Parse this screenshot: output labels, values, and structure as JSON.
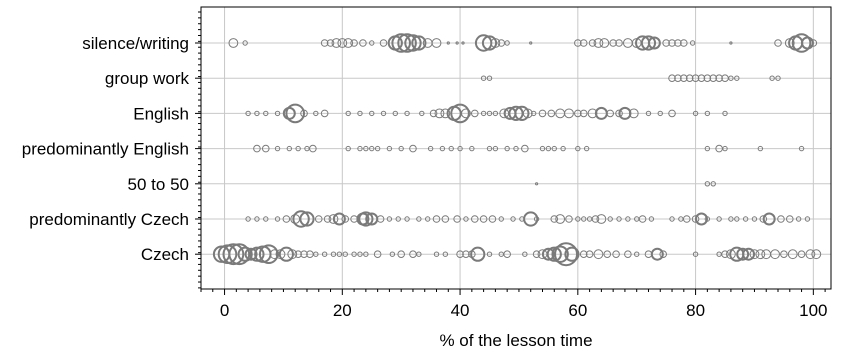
{
  "chart_data": {
    "type": "scatter",
    "xlabel": "% of the lesson time",
    "ylabel": "",
    "title": "",
    "xlim": [
      -4,
      103
    ],
    "xticks": [
      0,
      20,
      40,
      60,
      80,
      100
    ],
    "grid": true,
    "legend": "none",
    "marker_color": "#7a7a7a",
    "categories": [
      "silence/writing",
      "group work",
      "English",
      "predominantly English",
      "50 to 50",
      "predominantly Czech",
      "Czech"
    ],
    "series": [
      {
        "category": "silence/writing",
        "points": [
          [
            1.5,
            2
          ],
          [
            3.5,
            1
          ],
          [
            17,
            1.5
          ],
          [
            18,
            1.5
          ],
          [
            19,
            2
          ],
          [
            20,
            2
          ],
          [
            21,
            2
          ],
          [
            22,
            1.5
          ],
          [
            23.5,
            1.5
          ],
          [
            25,
            1
          ],
          [
            27,
            1.5
          ],
          [
            29,
            3
          ],
          [
            30,
            4
          ],
          [
            31,
            4
          ],
          [
            32,
            3.5
          ],
          [
            33,
            3
          ],
          [
            34.5,
            2
          ],
          [
            36,
            2
          ],
          [
            38,
            0.5
          ],
          [
            39.5,
            0.5
          ],
          [
            40.5,
            0.5
          ],
          [
            44,
            3.5
          ],
          [
            45,
            3
          ],
          [
            46,
            2
          ],
          [
            47,
            1.5
          ],
          [
            48,
            1
          ],
          [
            52,
            0.5
          ],
          [
            60,
            1.5
          ],
          [
            61,
            1.5
          ],
          [
            62.5,
            1.5
          ],
          [
            63.5,
            2
          ],
          [
            64.5,
            2
          ],
          [
            66,
            1.5
          ],
          [
            67,
            1.5
          ],
          [
            68.5,
            2
          ],
          [
            70,
            2
          ],
          [
            71,
            3
          ],
          [
            72,
            3
          ],
          [
            73,
            2.5
          ],
          [
            75,
            1.5
          ],
          [
            76,
            1.5
          ],
          [
            77,
            1.5
          ],
          [
            78,
            1.5
          ],
          [
            79.5,
            1
          ],
          [
            86,
            0.5
          ],
          [
            94,
            1.5
          ],
          [
            96,
            2
          ],
          [
            97,
            3
          ],
          [
            98,
            4
          ],
          [
            99,
            2.5
          ],
          [
            100,
            1.5
          ]
        ]
      },
      {
        "category": "group work",
        "points": [
          [
            44,
            1
          ],
          [
            45,
            1
          ],
          [
            76,
            1.5
          ],
          [
            77,
            1.5
          ],
          [
            78,
            1.5
          ],
          [
            79,
            1.5
          ],
          [
            80,
            1.5
          ],
          [
            81,
            1.5
          ],
          [
            82,
            1.5
          ],
          [
            83,
            1.5
          ],
          [
            84,
            1.5
          ],
          [
            85,
            1.5
          ],
          [
            86,
            1
          ],
          [
            87,
            1
          ],
          [
            93,
            1
          ],
          [
            94,
            1
          ]
        ]
      },
      {
        "category": "English",
        "points": [
          [
            4,
            1
          ],
          [
            5.5,
            1
          ],
          [
            7,
            1
          ],
          [
            9,
            1
          ],
          [
            11,
            2.5
          ],
          [
            12,
            4
          ],
          [
            13.5,
            1.5
          ],
          [
            15.5,
            1
          ],
          [
            17,
            1.5
          ],
          [
            21,
            1
          ],
          [
            23,
            1
          ],
          [
            25,
            1
          ],
          [
            27,
            1
          ],
          [
            29,
            1
          ],
          [
            31,
            1
          ],
          [
            33.5,
            1
          ],
          [
            35.5,
            1.5
          ],
          [
            36.5,
            2
          ],
          [
            37.5,
            2
          ],
          [
            39,
            3
          ],
          [
            40,
            4
          ],
          [
            41,
            2
          ],
          [
            42.5,
            1.5
          ],
          [
            44,
            1
          ],
          [
            45,
            1
          ],
          [
            46,
            1
          ],
          [
            47.5,
            2
          ],
          [
            48.5,
            2.5
          ],
          [
            49.5,
            3
          ],
          [
            50.5,
            3
          ],
          [
            51.5,
            2
          ],
          [
            52.5,
            1
          ],
          [
            54,
            1.5
          ],
          [
            55.5,
            1.5
          ],
          [
            57,
            2
          ],
          [
            58.5,
            2
          ],
          [
            60,
            1.5
          ],
          [
            61,
            1.5
          ],
          [
            62.5,
            2
          ],
          [
            64,
            2.5
          ],
          [
            65.5,
            1.5
          ],
          [
            67,
            1.5
          ],
          [
            68,
            2.5
          ],
          [
            69.5,
            2
          ],
          [
            72,
            1
          ],
          [
            74,
            1
          ],
          [
            76,
            1.5
          ],
          [
            80,
            1
          ],
          [
            82,
            1
          ],
          [
            85,
            1
          ]
        ]
      },
      {
        "category": "predominantly English",
        "points": [
          [
            5.5,
            1.5
          ],
          [
            7,
            1.5
          ],
          [
            9,
            1
          ],
          [
            11,
            1
          ],
          [
            12.5,
            1
          ],
          [
            14,
            1
          ],
          [
            15,
            1.5
          ],
          [
            21,
            1
          ],
          [
            23,
            1
          ],
          [
            24,
            1
          ],
          [
            25,
            1
          ],
          [
            26,
            1
          ],
          [
            28,
            1
          ],
          [
            30,
            1
          ],
          [
            32,
            1.5
          ],
          [
            35,
            1
          ],
          [
            37,
            1
          ],
          [
            38.5,
            1
          ],
          [
            40,
            1
          ],
          [
            42,
            1
          ],
          [
            45,
            1
          ],
          [
            46,
            1
          ],
          [
            48,
            1
          ],
          [
            49.5,
            1
          ],
          [
            51,
            1.5
          ],
          [
            54,
            1
          ],
          [
            55,
            1
          ],
          [
            56,
            1
          ],
          [
            57.5,
            1
          ],
          [
            60,
            1
          ],
          [
            61.5,
            1
          ],
          [
            82,
            1
          ],
          [
            84,
            1.5
          ],
          [
            85,
            1
          ],
          [
            91,
            1
          ],
          [
            98,
            1
          ]
        ]
      },
      {
        "category": "50 to 50",
        "points": [
          [
            53,
            0.5
          ],
          [
            82,
            1
          ],
          [
            83,
            1
          ]
        ]
      },
      {
        "category": "predominantly Czech",
        "points": [
          [
            4,
            1
          ],
          [
            5.5,
            1
          ],
          [
            7,
            1
          ],
          [
            9,
            1
          ],
          [
            10.5,
            1.5
          ],
          [
            12,
            2
          ],
          [
            13,
            3.5
          ],
          [
            14,
            3
          ],
          [
            16,
            1.5
          ],
          [
            17.5,
            1.5
          ],
          [
            18.5,
            2
          ],
          [
            19.5,
            2.5
          ],
          [
            20.5,
            1.5
          ],
          [
            22,
            1.5
          ],
          [
            23.5,
            2.5
          ],
          [
            24,
            3
          ],
          [
            25,
            2.5
          ],
          [
            26.5,
            1.5
          ],
          [
            28,
            1
          ],
          [
            29.5,
            1
          ],
          [
            31,
            1
          ],
          [
            33,
            1
          ],
          [
            34.5,
            1
          ],
          [
            36,
            1.5
          ],
          [
            37.5,
            1.5
          ],
          [
            39.5,
            1.5
          ],
          [
            41,
            1
          ],
          [
            42.5,
            1.5
          ],
          [
            44,
            1.5
          ],
          [
            45.5,
            1.5
          ],
          [
            47,
            1
          ],
          [
            49,
            1
          ],
          [
            50.5,
            1
          ],
          [
            52,
            3
          ],
          [
            53,
            1
          ],
          [
            56,
            1.5
          ],
          [
            57,
            2
          ],
          [
            58.5,
            1.5
          ],
          [
            60,
            1
          ],
          [
            61,
            1
          ],
          [
            62,
            1
          ],
          [
            63,
            1.5
          ],
          [
            64,
            2
          ],
          [
            65.5,
            1
          ],
          [
            67,
            1
          ],
          [
            68.5,
            1
          ],
          [
            70,
            1
          ],
          [
            71,
            1.5
          ],
          [
            72.5,
            1
          ],
          [
            76,
            1
          ],
          [
            77.5,
            1
          ],
          [
            78.5,
            1.5
          ],
          [
            80,
            1.5
          ],
          [
            81,
            2.5
          ],
          [
            82,
            1
          ],
          [
            84,
            1
          ],
          [
            86,
            1
          ],
          [
            87,
            1
          ],
          [
            88.5,
            1
          ],
          [
            90,
            1
          ],
          [
            91.5,
            1.5
          ],
          [
            92.5,
            2.5
          ],
          [
            94.5,
            1.5
          ],
          [
            96,
            1.5
          ],
          [
            97.5,
            1
          ],
          [
            99,
            1
          ]
        ]
      },
      {
        "category": "Czech",
        "points": [
          [
            -0.5,
            3.5
          ],
          [
            0.5,
            4
          ],
          [
            1.5,
            4.5
          ],
          [
            2.5,
            4.5
          ],
          [
            3.5,
            3
          ],
          [
            4.5,
            2.5
          ],
          [
            5.5,
            3
          ],
          [
            6.5,
            3.5
          ],
          [
            7.5,
            4
          ],
          [
            8.5,
            2
          ],
          [
            9.5,
            2
          ],
          [
            10.5,
            3
          ],
          [
            11.5,
            2
          ],
          [
            12.5,
            1.5
          ],
          [
            13.5,
            1.5
          ],
          [
            14.5,
            1.5
          ],
          [
            15.5,
            1
          ],
          [
            17,
            1
          ],
          [
            18.5,
            1
          ],
          [
            19.5,
            1
          ],
          [
            20.5,
            1
          ],
          [
            22,
            1
          ],
          [
            23,
            1
          ],
          [
            24,
            1
          ],
          [
            26,
            1.5
          ],
          [
            28.5,
            1
          ],
          [
            30,
            1.5
          ],
          [
            32,
            1.5
          ],
          [
            33,
            1
          ],
          [
            36,
            1
          ],
          [
            37.5,
            1
          ],
          [
            40,
            1.5
          ],
          [
            41,
            1.5
          ],
          [
            42,
            1.5
          ],
          [
            43,
            3
          ],
          [
            45,
            1
          ],
          [
            47,
            1
          ],
          [
            48,
            1.5
          ],
          [
            51,
            1
          ],
          [
            53,
            1.5
          ],
          [
            54,
            2
          ],
          [
            55,
            2.5
          ],
          [
            56,
            3
          ],
          [
            57,
            3.5
          ],
          [
            58,
            5
          ],
          [
            59,
            3
          ],
          [
            61,
            1.5
          ],
          [
            62,
            1.5
          ],
          [
            63.5,
            2
          ],
          [
            65,
            1.5
          ],
          [
            66.5,
            1.5
          ],
          [
            68.5,
            1.5
          ],
          [
            70,
            1
          ],
          [
            72,
            1.5
          ],
          [
            73.5,
            2.5
          ],
          [
            74.5,
            1.5
          ],
          [
            80,
            1
          ],
          [
            84,
            1
          ],
          [
            85,
            1.5
          ],
          [
            86,
            2
          ],
          [
            87,
            3
          ],
          [
            88,
            2.5
          ],
          [
            89,
            2.5
          ],
          [
            90,
            2
          ],
          [
            91,
            2
          ],
          [
            92,
            2
          ],
          [
            93.5,
            2
          ],
          [
            95,
            1.5
          ],
          [
            96.5,
            2
          ],
          [
            98,
            1.5
          ],
          [
            99.5,
            2
          ],
          [
            100.5,
            2
          ]
        ]
      }
    ]
  }
}
